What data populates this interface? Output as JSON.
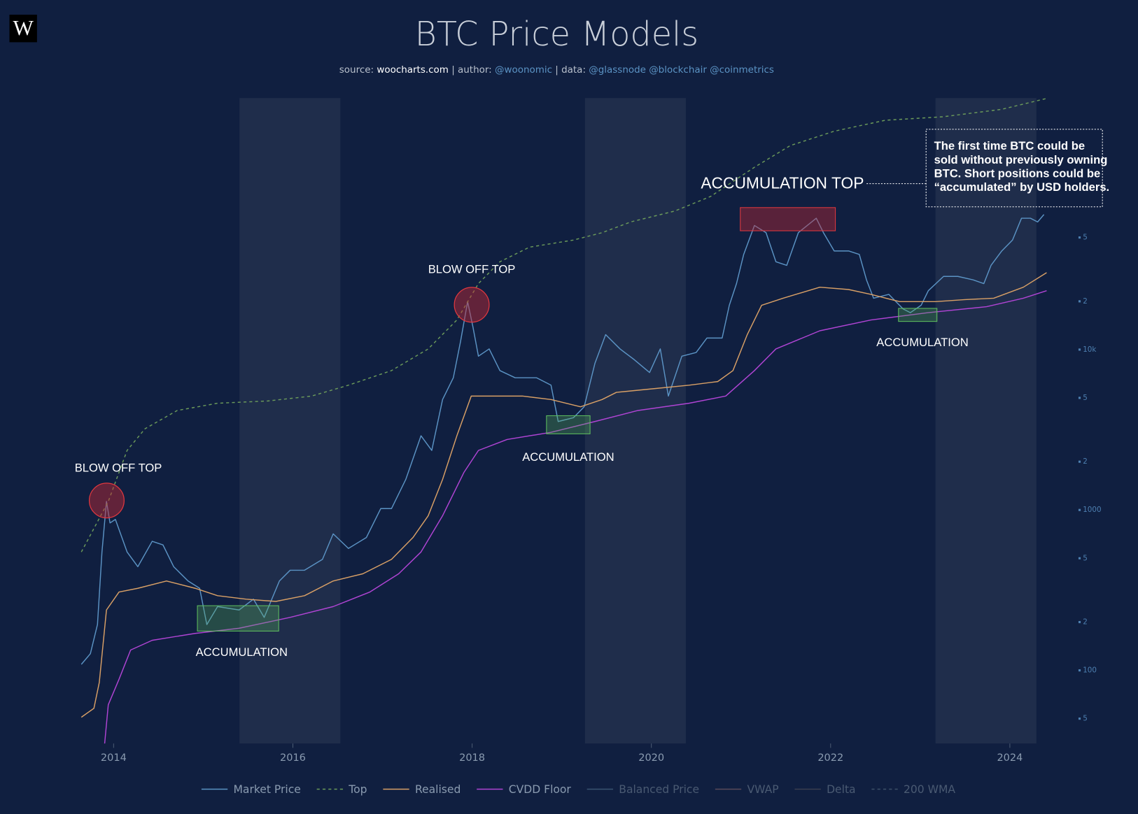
{
  "logo": "W",
  "chart_data": {
    "type": "line",
    "title": "BTC Price Models",
    "subtitle": [
      "source: ",
      "woocharts.com",
      " | author: ",
      "@woonomic",
      " | data: ",
      "@glassnode @blockchair @coinmetrics"
    ],
    "log_scale": true,
    "xlim": [
      2013.55,
      2024.45
    ],
    "xticks": [
      2014,
      2016,
      2018,
      2020,
      2022,
      2024
    ],
    "ylim": [
      35,
      370000
    ],
    "yticks": [
      {
        "value": 50,
        "label": "5"
      },
      100,
      {
        "value": 200,
        "label": "2"
      },
      {
        "value": 500,
        "label": "5"
      },
      1000,
      {
        "value": 2000,
        "label": "2"
      },
      {
        "value": 5000,
        "label": "5"
      },
      {
        "value": 10000,
        "label": "10k"
      },
      {
        "value": 20000,
        "label": "2"
      },
      {
        "value": 50000,
        "label": "5"
      }
    ],
    "series": [
      {
        "name": "Market Price",
        "color": "#5b93c4",
        "dash": false,
        "x": [
          2013.64,
          2013.74,
          2013.82,
          2013.87,
          2013.92,
          2013.96,
          2014.02,
          2014.15,
          2014.27,
          2014.43,
          2014.55,
          2014.67,
          2014.83,
          2014.96,
          2015.04,
          2015.16,
          2015.4,
          2015.56,
          2015.68,
          2015.85,
          2015.97,
          2016.13,
          2016.33,
          2016.45,
          2016.62,
          2016.82,
          2016.98,
          2017.1,
          2017.26,
          2017.43,
          2017.55,
          2017.67,
          2017.79,
          2017.87,
          2017.95,
          2018.01,
          2018.07,
          2018.19,
          2018.31,
          2018.48,
          2018.72,
          2018.88,
          2018.96,
          2019.13,
          2019.25,
          2019.37,
          2019.49,
          2019.65,
          2019.81,
          2019.98,
          2020.1,
          2020.19,
          2020.34,
          2020.5,
          2020.62,
          2020.79,
          2020.87,
          2020.95,
          2021.03,
          2021.15,
          2021.28,
          2021.39,
          2021.51,
          2021.64,
          2021.84,
          2021.92,
          2022.04,
          2022.2,
          2022.32,
          2022.4,
          2022.48,
          2022.65,
          2022.81,
          2022.89,
          2023.01,
          2023.09,
          2023.26,
          2023.42,
          2023.59,
          2023.71,
          2023.79,
          2023.91,
          2024.03,
          2024.13,
          2024.23,
          2024.31,
          2024.38
        ],
        "values": [
          109,
          127,
          193,
          547,
          1130,
          830,
          873,
          547,
          443,
          638,
          606,
          443,
          361,
          325,
          193,
          250,
          238,
          278,
          214,
          361,
          421,
          421,
          492,
          710,
          576,
          673,
          1020,
          1020,
          1550,
          2900,
          2350,
          4880,
          6670,
          11200,
          19900,
          13800,
          9100,
          10100,
          7400,
          6670,
          6670,
          6000,
          3560,
          3760,
          4400,
          8200,
          12400,
          10100,
          8650,
          7200,
          10100,
          5130,
          9100,
          9600,
          11800,
          11800,
          18900,
          25800,
          39200,
          59400,
          53600,
          35300,
          33500,
          53600,
          65900,
          53600,
          41200,
          41200,
          39200,
          27200,
          20900,
          22100,
          17900,
          17000,
          18900,
          23300,
          28600,
          28600,
          27200,
          25800,
          33500,
          41200,
          48200,
          65900,
          65900,
          62500,
          69500
        ]
      },
      {
        "name": "Top",
        "color": "#6b9a5a",
        "dash": true,
        "x": [
          2013.64,
          2013.94,
          2014.15,
          2014.35,
          2014.71,
          2015.16,
          2015.72,
          2016.21,
          2016.62,
          2017.1,
          2017.51,
          2017.83,
          2018.07,
          2018.31,
          2018.64,
          2019.13,
          2019.45,
          2019.77,
          2020.26,
          2020.66,
          2021.15,
          2021.55,
          2022.04,
          2022.61,
          2023.26,
          2023.91,
          2024.41
        ],
        "values": [
          547,
          1130,
          2350,
          3210,
          4170,
          4630,
          4780,
          5130,
          6000,
          7400,
          10100,
          15300,
          25800,
          35300,
          43500,
          48200,
          53600,
          62500,
          73100,
          90100,
          137000,
          187000,
          230000,
          269000,
          283000,
          315000,
          368000
        ]
      },
      {
        "name": "Realised",
        "color": "#d9a066",
        "dash": false,
        "x": [
          2013.64,
          2013.78,
          2013.84,
          2013.92,
          2014.06,
          2014.27,
          2014.59,
          2014.91,
          2015.16,
          2015.48,
          2015.81,
          2016.13,
          2016.45,
          2016.78,
          2017.1,
          2017.34,
          2017.51,
          2017.67,
          2017.83,
          2017.99,
          2018.23,
          2018.56,
          2018.88,
          2019.21,
          2019.45,
          2019.61,
          2020.02,
          2020.42,
          2020.74,
          2020.91,
          2021.07,
          2021.23,
          2021.47,
          2021.88,
          2022.2,
          2022.45,
          2022.77,
          2023.17,
          2023.5,
          2023.82,
          2024.15,
          2024.41
        ],
        "values": [
          51,
          58,
          84,
          238,
          308,
          325,
          361,
          325,
          292,
          278,
          269,
          292,
          361,
          400,
          492,
          673,
          920,
          1550,
          2900,
          5130,
          5130,
          5130,
          4880,
          4400,
          4880,
          5410,
          5700,
          6000,
          6320,
          7400,
          12400,
          18900,
          20900,
          24500,
          23700,
          22100,
          19900,
          19900,
          20500,
          20900,
          24500,
          30200
        ]
      },
      {
        "name": "CVDD Floor",
        "color": "#b044d4",
        "dash": false,
        "x": [
          2013.9,
          2013.94,
          2014.06,
          2014.19,
          2014.43,
          2014.91,
          2015.4,
          2015.97,
          2016.45,
          2016.86,
          2017.18,
          2017.43,
          2017.67,
          2017.91,
          2018.07,
          2018.39,
          2018.88,
          2019.37,
          2019.85,
          2020.42,
          2020.83,
          2021.15,
          2021.39,
          2021.88,
          2022.45,
          2023.09,
          2023.74,
          2024.15,
          2024.41
        ],
        "values": [
          35,
          61,
          88,
          134,
          154,
          170,
          183,
          214,
          250,
          308,
          400,
          547,
          920,
          1720,
          2350,
          2750,
          3050,
          3560,
          4170,
          4630,
          5130,
          7400,
          10100,
          13100,
          15300,
          17000,
          18500,
          20900,
          23300
        ]
      }
    ],
    "legend_only": [
      {
        "name": "Balanced Price",
        "color": "#3a5470",
        "dash": false
      },
      {
        "name": "VWAP",
        "color": "#5a4a5a",
        "dash": false
      },
      {
        "name": "Delta",
        "color": "#3b3f4e",
        "dash": false
      },
      {
        "name": "200 WMA",
        "color": "#3d5068",
        "dash": true
      }
    ],
    "annotations": [
      "BLOW OFF TOP",
      "BLOW OFF TOP",
      "ACCUMULATION",
      "ACCUMULATION",
      "ACCUMULATION",
      "ACCUMULATION TOP"
    ],
    "note": [
      "The first time BTC could be",
      "sold without previously owning",
      "BTC. Short positions could be",
      "“accumulated” by USD holders."
    ]
  }
}
